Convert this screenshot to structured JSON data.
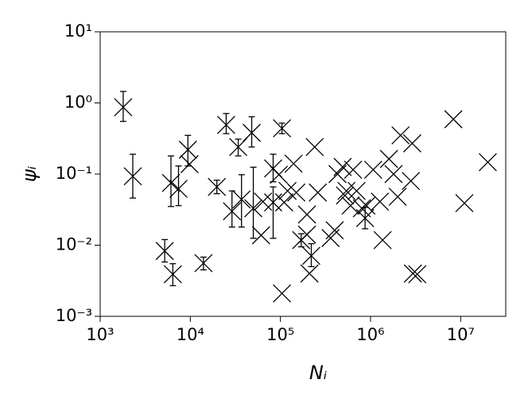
{
  "chart_data": {
    "type": "scatter",
    "x_label": "Nᵢ",
    "y_label": "ψᵢ",
    "log_x": true,
    "log_y": true,
    "marker": "x",
    "color": "#000000",
    "xlim": [
      1000,
      31622776
    ],
    "ylim": [
      0.001,
      10
    ],
    "xticks": [
      {
        "value": 1000,
        "label": "10³"
      },
      {
        "value": 10000,
        "label": "10⁴"
      },
      {
        "value": 100000,
        "label": "10⁵"
      },
      {
        "value": 1000000,
        "label": "10⁶"
      },
      {
        "value": 10000000,
        "label": "10⁷"
      }
    ],
    "yticks": [
      {
        "value": 0.001,
        "label": "10⁻³"
      },
      {
        "value": 0.01,
        "label": "10⁻²"
      },
      {
        "value": 0.1,
        "label": "10⁻¹"
      },
      {
        "value": 1,
        "label": "10⁰"
      },
      {
        "value": 10,
        "label": "10¹"
      }
    ],
    "series": [
      {
        "x": [
          1800,
          2300,
          5200,
          6400,
          6100,
          7400,
          9400,
          9800,
          14000,
          19700,
          25000,
          34000,
          48000,
          29000,
          37000,
          50000,
          61000,
          64000,
          83000,
          83000,
          96000,
          104000,
          104000,
          110000,
          120000,
          140000,
          150000,
          170000,
          197000,
          220000,
          210000,
          240000,
          260000,
          197000,
          360000,
          400000,
          430000,
          490000,
          520000,
          640000,
          700000,
          800000,
          870000,
          1070000,
          1270000,
          1360000,
          1600000,
          1800000,
          2000000,
          2150000,
          2900000,
          2800000,
          2950000,
          3300000,
          8300000,
          11000000,
          20000000,
          600000,
          900000,
          540000
        ],
        "values": [
          0.87,
          0.093,
          0.0083,
          0.0039,
          0.075,
          0.062,
          0.22,
          0.138,
          0.0056,
          0.066,
          0.49,
          0.24,
          0.38,
          0.03,
          0.044,
          0.033,
          0.0138,
          0.041,
          0.04,
          0.12,
          0.098,
          0.44,
          0.0021,
          0.04,
          0.058,
          0.14,
          0.055,
          0.0118,
          0.0141,
          0.0071,
          0.004,
          0.24,
          0.055,
          0.027,
          0.0126,
          0.0162,
          0.1,
          0.126,
          0.05,
          0.115,
          0.058,
          0.033,
          0.024,
          0.115,
          0.041,
          0.0118,
          0.163,
          0.1,
          0.048,
          0.35,
          0.27,
          0.08,
          0.004,
          0.0039,
          0.59,
          0.039,
          0.147,
          0.036,
          0.036,
          0.058
        ],
        "y_low": [
          0.55,
          0.046,
          0.0058,
          0.0027,
          0.035,
          0.036,
          0.13,
          null,
          0.0045,
          0.053,
          0.37,
          0.18,
          0.24,
          0.018,
          0.018,
          0.0125,
          null,
          null,
          0.0125,
          0.078,
          null,
          0.37,
          null,
          null,
          null,
          null,
          null,
          0.0095,
          null,
          0.005,
          null,
          null,
          null,
          null,
          null,
          null,
          null,
          null,
          null,
          null,
          null,
          null,
          0.017,
          null,
          null,
          null,
          null,
          null,
          null,
          null,
          null,
          null,
          null,
          null,
          null,
          null,
          null,
          null,
          null,
          null
        ],
        "y_high": [
          1.45,
          0.19,
          0.012,
          0.0055,
          0.18,
          0.13,
          0.35,
          null,
          0.0068,
          0.082,
          0.71,
          0.31,
          0.64,
          0.058,
          0.098,
          0.125,
          null,
          null,
          0.066,
          0.19,
          null,
          0.52,
          null,
          null,
          null,
          null,
          null,
          0.0145,
          null,
          0.0105,
          null,
          null,
          null,
          null,
          null,
          null,
          null,
          null,
          null,
          null,
          null,
          null,
          0.034,
          null,
          null,
          null,
          null,
          null,
          null,
          null,
          null,
          null,
          null,
          null,
          null,
          null,
          null,
          null,
          null,
          null
        ]
      }
    ]
  }
}
